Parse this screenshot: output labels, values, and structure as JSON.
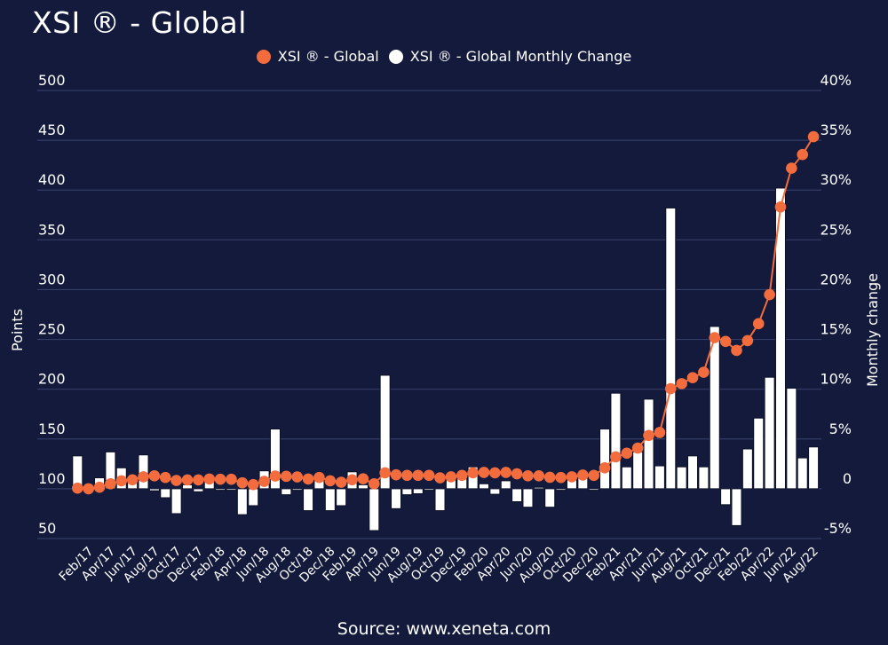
{
  "chart_data": {
    "type": "bar+line",
    "title": "XSI ® - Global",
    "source": "Source: www.xeneta.com",
    "legend": [
      {
        "name": "XSI ® - Global",
        "color": "#f36c3d",
        "marker": "circle"
      },
      {
        "name": "XSI ® - Global Monthly Change",
        "color": "#ffffff",
        "marker": "circle"
      }
    ],
    "legend_position": "top-center",
    "ylabel_left": "Points",
    "ylabel_right": "Monthly change",
    "ylim_left": [
      50,
      500
    ],
    "ylim_right": [
      -5,
      40
    ],
    "yticks_left": [
      "50",
      "100",
      "150",
      "200",
      "250",
      "300",
      "350",
      "400",
      "450",
      "500"
    ],
    "yticks_right": [
      "-5%",
      "0",
      "5%",
      "10%",
      "15%",
      "20%",
      "25%",
      "30%",
      "35%",
      "40%"
    ],
    "grid": true,
    "categories": [
      "Jan/17",
      "Feb/17",
      "Mar/17",
      "Apr/17",
      "May/17",
      "Jun/17",
      "Jul/17",
      "Aug/17",
      "Sep/17",
      "Oct/17",
      "Nov/17",
      "Dec/17",
      "Jan/18",
      "Feb/18",
      "Mar/18",
      "Apr/18",
      "May/18",
      "Jun/18",
      "Jul/18",
      "Aug/18",
      "Sep/18",
      "Oct/18",
      "Nov/18",
      "Dec/18",
      "Jan/19",
      "Feb/19",
      "Mar/19",
      "Apr/19",
      "May/19",
      "Jun/19",
      "Jul/19",
      "Aug/19",
      "Sep/19",
      "Oct/19",
      "Nov/19",
      "Dec/19",
      "Jan/20",
      "Feb/20",
      "Mar/20",
      "Apr/20",
      "May/20",
      "Jun/20",
      "Jul/20",
      "Aug/20",
      "Sep/20",
      "Oct/20",
      "Nov/20",
      "Dec/20",
      "Jan/21",
      "Feb/21",
      "Mar/21",
      "Apr/21",
      "May/21",
      "Jun/21",
      "Jul/21",
      "Aug/21",
      "Sep/21",
      "Oct/21",
      "Nov/21",
      "Dec/21",
      "Jan/22",
      "Feb/22",
      "Mar/22",
      "Apr/22",
      "May/22",
      "Jun/22",
      "Jul/22",
      "Aug/22"
    ],
    "xtick_labels_shown": [
      "Feb/17",
      "Apr/17",
      "Jun/17",
      "Aug/17",
      "Oct/17",
      "Dec/17",
      "Feb/18",
      "Apr/18",
      "Jun/18",
      "Aug/18",
      "Oct/18",
      "Dec/18",
      "Feb/19",
      "Apr/19",
      "Jun/19",
      "Aug/19",
      "Oct/19",
      "Dec/19",
      "Feb/20",
      "Apr/20",
      "Jun/20",
      "Aug/20",
      "Oct/20",
      "Dec/20",
      "Feb/21",
      "Apr/21",
      "Jun/21",
      "Aug/21",
      "Oct/21",
      "Dec/21",
      "Feb/22",
      "Apr/22",
      "Jun/22",
      "Aug/22"
    ],
    "series": [
      {
        "name": "XSI ® - Global",
        "type": "line",
        "axis": "left",
        "color": "#f36c3d",
        "values": [
          100.6,
          100.0,
          101.5,
          105.0,
          108.0,
          109.0,
          112.0,
          113.0,
          111.3,
          108.3,
          108.9,
          108.9,
          109.8,
          109.5,
          109.5,
          106.0,
          104.2,
          107.4,
          112.8,
          112.5,
          111.9,
          109.8,
          111.3,
          108.0,
          106.5,
          109.0,
          110.0,
          105.0,
          116.0,
          114.0,
          113.5,
          113.5,
          113.5,
          111.0,
          112.0,
          113.4,
          116.0,
          116.4,
          116.0,
          116.4,
          115.0,
          113.0,
          113.0,
          111.5,
          111.3,
          112.0,
          113.8,
          113.4,
          121.0,
          132.0,
          135.7,
          140.8,
          153.6,
          156.5,
          200.6,
          205.6,
          211.6,
          217.0,
          251.8,
          248.0,
          239.0,
          248.8,
          265.8,
          295.0,
          383.0,
          422.0,
          435.7,
          453.6
        ]
      },
      {
        "name": "XSI ® - Global Monthly Change",
        "type": "bar",
        "axis": "right",
        "unit": "%",
        "color": "#ffffff",
        "values": [
          3.3,
          0.0,
          1.1,
          3.7,
          2.1,
          1.2,
          3.4,
          -0.2,
          -0.9,
          -2.5,
          0.4,
          -0.3,
          0.8,
          -0.15,
          -0.15,
          -2.6,
          -1.7,
          1.8,
          6.0,
          -0.6,
          -0.15,
          -2.2,
          0.9,
          -2.2,
          -1.7,
          1.7,
          0.4,
          -4.2,
          11.4,
          -2.0,
          -0.6,
          -0.5,
          -0.15,
          -2.2,
          0.9,
          1.0,
          2.2,
          0.5,
          -0.55,
          0.8,
          -1.3,
          -1.85,
          0.15,
          -1.85,
          -0.15,
          1.1,
          1.2,
          -0.15,
          6.0,
          9.6,
          2.2,
          3.7,
          9.0,
          2.3,
          28.2,
          2.2,
          3.3,
          2.2,
          16.3,
          -1.6,
          -3.7,
          4.0,
          7.1,
          11.2,
          30.2,
          10.1,
          3.1,
          4.2
        ]
      }
    ]
  }
}
